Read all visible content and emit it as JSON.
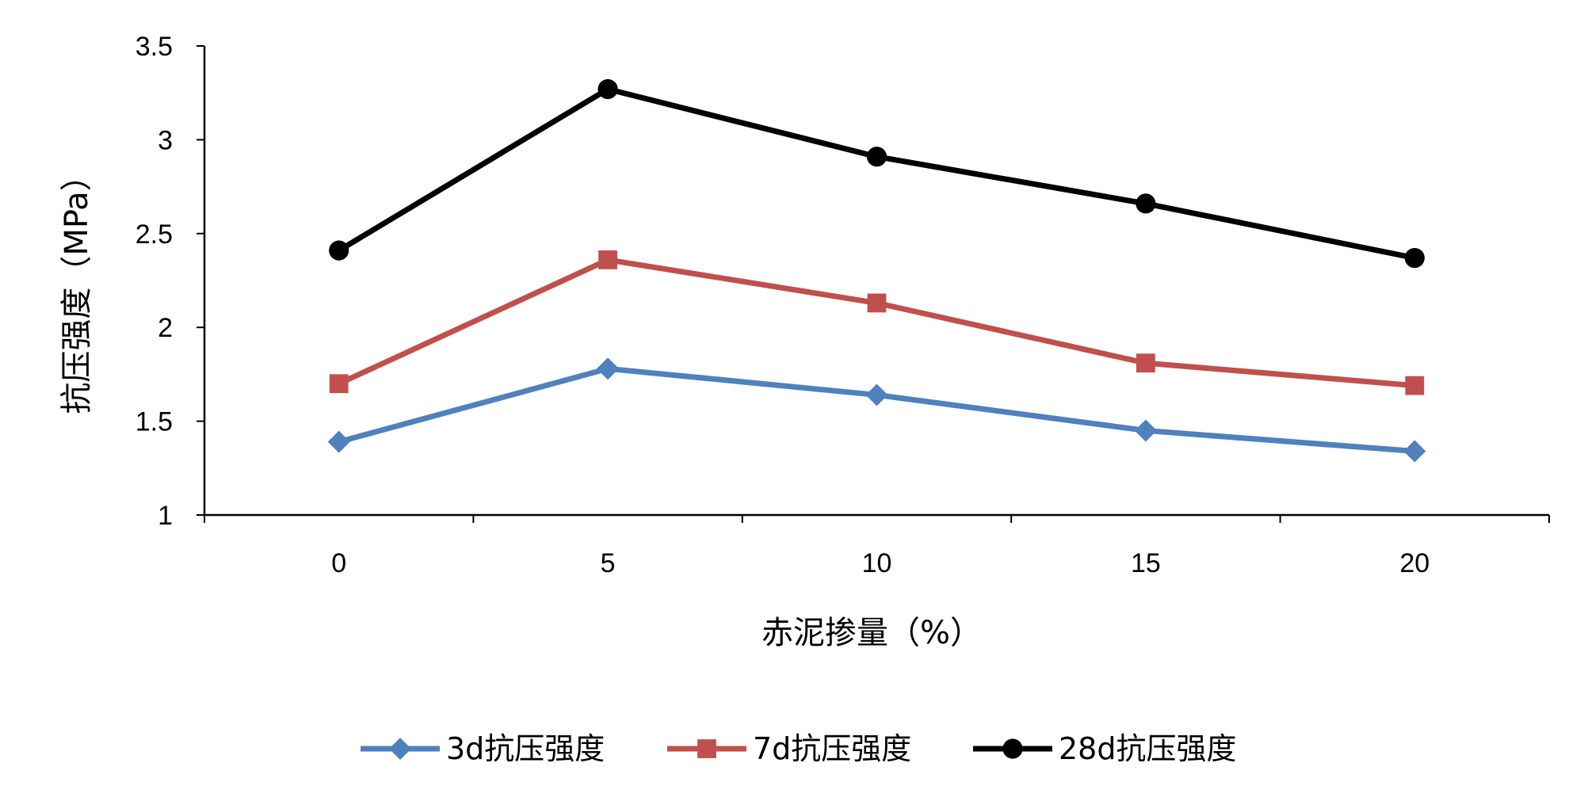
{
  "chart_data": {
    "type": "line",
    "title": "",
    "xlabel": "赤泥掺量（%）",
    "ylabel": "抗压强度（MPa）",
    "categories": [
      "0",
      "5",
      "10",
      "15",
      "20"
    ],
    "ylim": [
      1,
      3.5
    ],
    "yticks": [
      "1",
      "1.5",
      "2",
      "2.5",
      "3",
      "3.5"
    ],
    "grid": false,
    "legend_position": "bottom",
    "series": [
      {
        "name": "3d抗压强度",
        "values": [
          1.39,
          1.78,
          1.64,
          1.45,
          1.34
        ],
        "color": "#4F81BD",
        "marker": "diamond"
      },
      {
        "name": "7d抗压强度",
        "values": [
          1.7,
          2.36,
          2.13,
          1.81,
          1.69
        ],
        "color": "#C0504D",
        "marker": "square"
      },
      {
        "name": "28d抗压强度",
        "values": [
          2.41,
          3.27,
          2.91,
          2.66,
          2.37
        ],
        "color": "#000000",
        "marker": "circle"
      }
    ]
  }
}
